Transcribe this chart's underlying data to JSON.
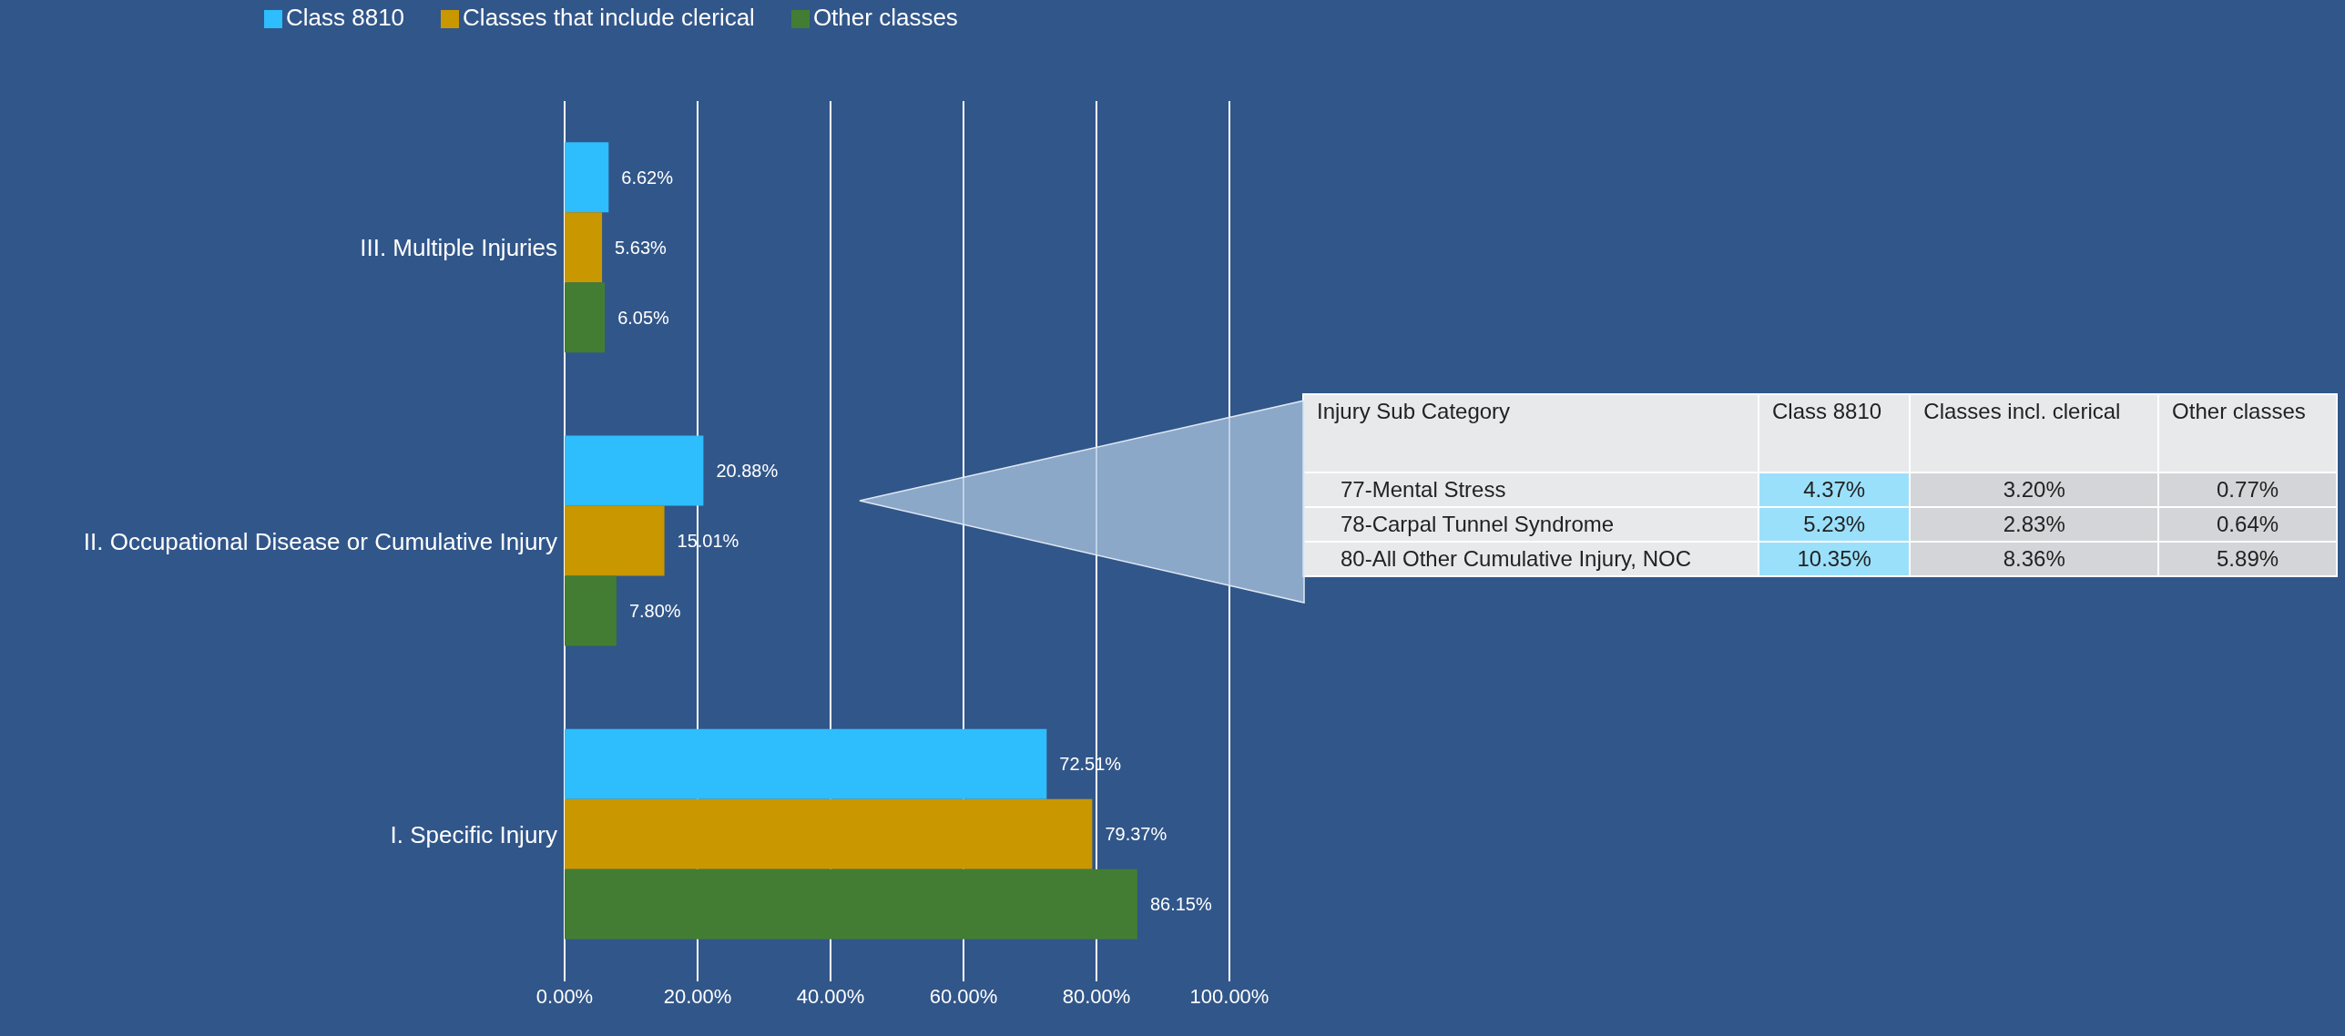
{
  "chart_data": [
    {
      "type": "bar",
      "orientation": "horizontal",
      "categories": [
        "III. Multiple Injuries",
        "II. Occupational Disease or Cumulative Injury",
        "I. Specific Injury"
      ],
      "series": [
        {
          "name": "Class 8810",
          "color": "#2ebdfd",
          "values": [
            6.62,
            20.88,
            72.51
          ],
          "value_labels": [
            "6.62%",
            "20.88%",
            "72.51%"
          ]
        },
        {
          "name": "Classes that include clerical",
          "color": "#c99700",
          "values": [
            5.63,
            15.01,
            79.37
          ],
          "value_labels": [
            "5.63%",
            "15.01%",
            "79.37%"
          ]
        },
        {
          "name": "Other classes",
          "color": "#437d33",
          "values": [
            6.05,
            7.8,
            86.15
          ],
          "value_labels": [
            "6.05%",
            "7.80%",
            "86.15%"
          ]
        }
      ],
      "xlim": [
        0,
        100
      ],
      "xticks": [
        {
          "value": 0,
          "label": "0.00%"
        },
        {
          "value": 20,
          "label": "20.00%"
        },
        {
          "value": 40,
          "label": "40.00%"
        },
        {
          "value": 60,
          "label": "60.00%"
        },
        {
          "value": 80,
          "label": "80.00%"
        },
        {
          "value": 100,
          "label": "100.00%"
        }
      ],
      "grid": "x",
      "legend": "top left"
    },
    {
      "type": "other",
      "ylabel": "Injury Sub Category",
      "categories": [
        "Class 8810",
        "Classes incl. clerical",
        "Other classes"
      ],
      "y_categories": [
        "77-Mental Stress",
        "78-Carpal Tunnel Syndrome",
        "80-All Other Cumulative Injury, NOC"
      ],
      "cell_labels": [
        [
          "4.37%",
          "3.20%",
          "0.77%"
        ],
        [
          "5.23%",
          "2.83%",
          "0.64%"
        ],
        [
          "10.35%",
          "8.36%",
          "5.89%"
        ]
      ]
    }
  ]
}
